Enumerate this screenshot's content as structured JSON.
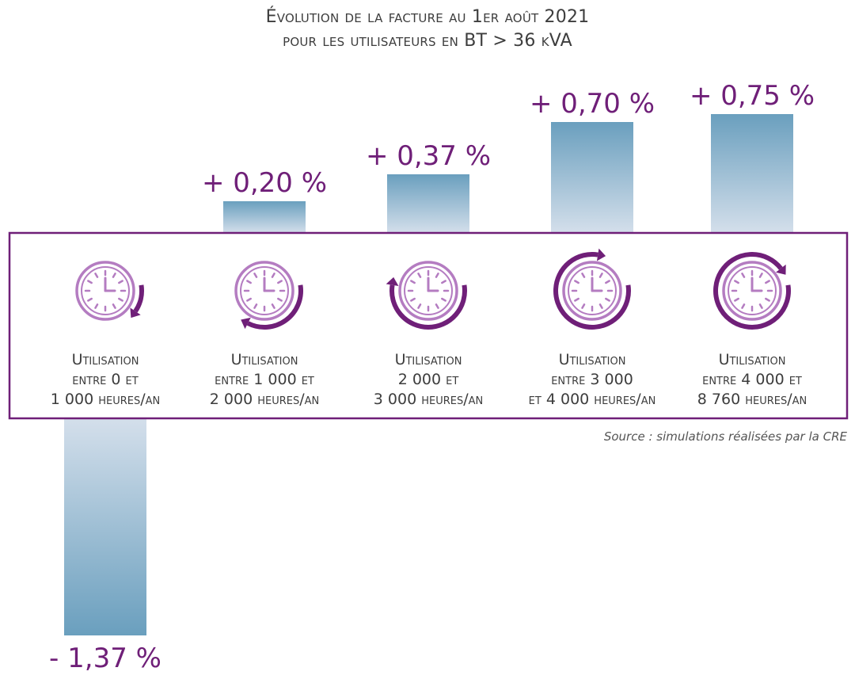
{
  "chart_data": {
    "type": "bar",
    "title_line1": "Évolution de la facture au 1er août 2021",
    "title_line2": "pour les utilisateurs en BT > 36 kVA",
    "unit": "%",
    "ylim": [
      -1.5,
      0.8
    ],
    "categories": [
      [
        "Utilisation",
        "entre 0 et",
        "1 000 heures/an"
      ],
      [
        "Utilisation",
        "entre 1 000 et",
        "2 000 heures/an"
      ],
      [
        "Utilisation",
        "2 000 et",
        "3 000 heures/an"
      ],
      [
        "Utilisation",
        "entre 3 000",
        "et 4 000 heures/an"
      ],
      [
        "Utilisation",
        "entre 4 000 et",
        "8 760 heures/an"
      ]
    ],
    "values": [
      -1.37,
      0.2,
      0.37,
      0.7,
      0.75
    ],
    "value_labels": [
      "- 1,37 %",
      "+ 0,20 %",
      "+ 0,37 %",
      "+ 0,70 %",
      "+ 0,75 %"
    ],
    "icons": [
      "clock-arrow-small-icon",
      "clock-arrow-quarter-icon",
      "clock-arrow-half-icon",
      "clock-arrow-three-quarter-icon",
      "clock-arrow-full-icon"
    ],
    "arrow_fraction": [
      0.12,
      0.35,
      0.55,
      0.8,
      0.92
    ],
    "source": "Source : simulations réalisées par la CRE"
  },
  "colors": {
    "accent": "#6f1f78",
    "icon_light": "#b47cc1",
    "bar_dark": "#6a9fbe",
    "bar_light": "#d4dfeb",
    "text": "#3d3d3d"
  }
}
